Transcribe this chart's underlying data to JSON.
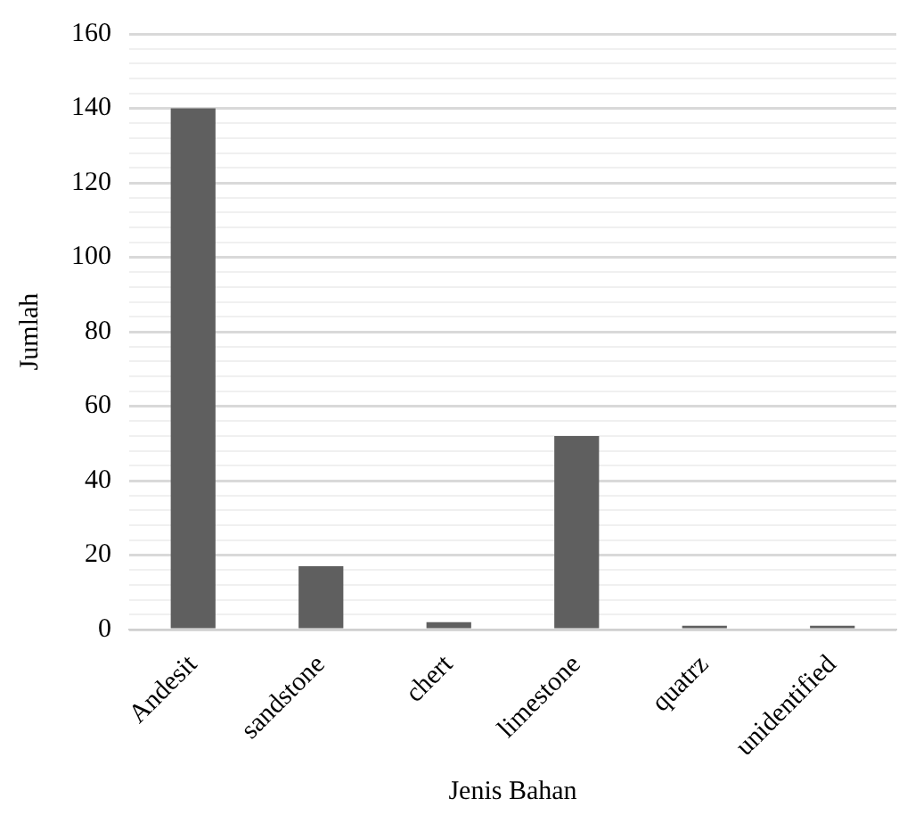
{
  "chart_data": {
    "type": "bar",
    "xlabel": "Jenis Bahan",
    "ylabel": "Jumlah",
    "categories": [
      "Andesit",
      "sandstone",
      "chert",
      "limestone",
      "quatrz",
      "unidentified"
    ],
    "values": [
      140,
      17,
      2,
      52,
      1,
      1
    ],
    "color": "#5f5f5f",
    "ylim": [
      0,
      160
    ],
    "yticks": [
      0,
      {
        "value": 4,
        "label": null
      },
      {
        "value": 8,
        "label": null
      },
      {
        "value": 12,
        "label": null
      },
      {
        "value": 16,
        "label": null
      },
      20,
      {
        "value": 24,
        "label": null
      },
      {
        "value": 28,
        "label": null
      },
      {
        "value": 32,
        "label": null
      },
      {
        "value": 36,
        "label": null
      },
      40,
      {
        "value": 44,
        "label": null
      },
      {
        "value": 48,
        "label": null
      },
      {
        "value": 52,
        "label": null
      },
      {
        "value": 56,
        "label": null
      },
      60,
      {
        "value": 64,
        "label": null
      },
      {
        "value": 68,
        "label": null
      },
      {
        "value": 72,
        "label": null
      },
      {
        "value": 76,
        "label": null
      },
      80,
      {
        "value": 84,
        "label": null
      },
      {
        "value": 88,
        "label": null
      },
      {
        "value": 92,
        "label": null
      },
      {
        "value": 96,
        "label": null
      },
      100,
      {
        "value": 104,
        "label": null
      },
      {
        "value": 108,
        "label": null
      },
      {
        "value": 112,
        "label": null
      },
      {
        "value": 116,
        "label": null
      },
      120,
      {
        "value": 124,
        "label": null
      },
      {
        "value": 128,
        "label": null
      },
      {
        "value": 132,
        "label": null
      },
      {
        "value": 136,
        "label": null
      },
      140,
      {
        "value": 144,
        "label": null
      },
      {
        "value": 148,
        "label": null
      },
      {
        "value": 152,
        "label": null
      },
      {
        "value": 156,
        "label": null
      },
      160
    ],
    "grid": "y"
  }
}
